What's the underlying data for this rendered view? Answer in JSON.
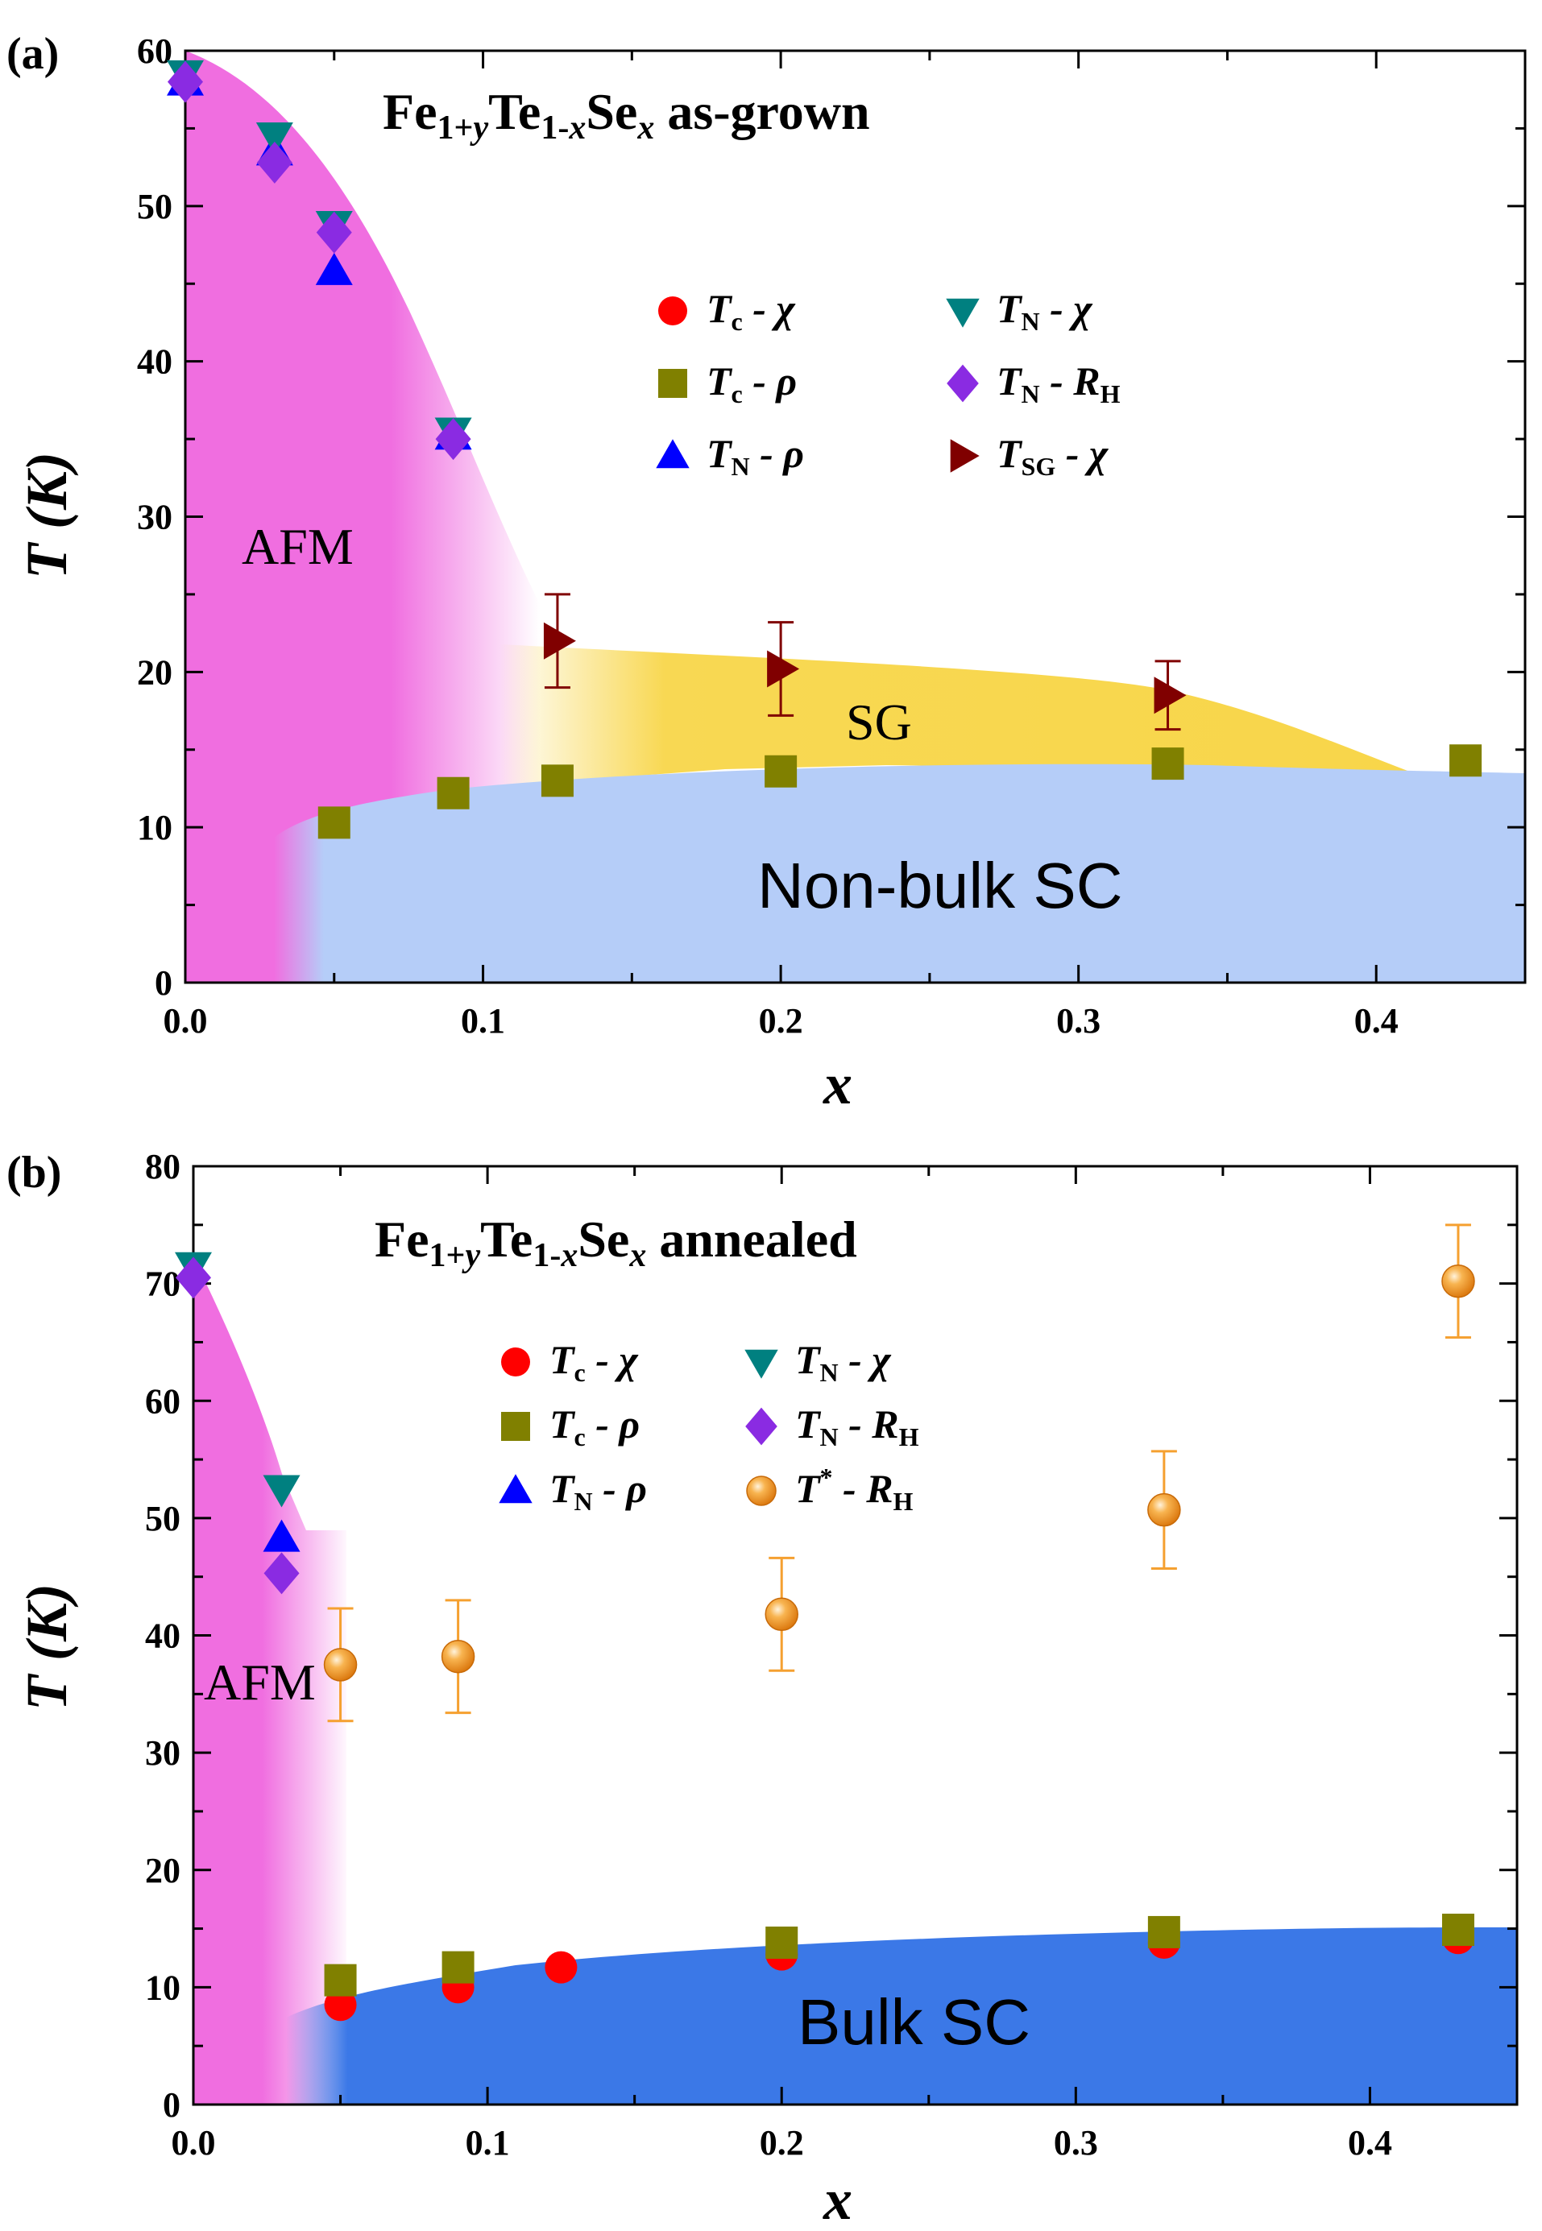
{
  "chart_data": [
    {
      "type": "scatter",
      "panel_label": "(a)",
      "title": "Fe1+yTe1-xSex as-grown",
      "title_parts": {
        "base": "Fe",
        "sub1": "1+",
        "sub1_italic": "y",
        "mid": "Te",
        "sub2": "1-",
        "sub2_italic": "x",
        "end": "Se",
        "sub3": "x",
        "suffix": " as-grown"
      },
      "xlabel": "x",
      "ylabel": "T (K)",
      "xlim": [
        0.0,
        0.45
      ],
      "ylim": [
        0,
        60
      ],
      "x_ticks": [
        "0.0",
        "0.1",
        "0.2",
        "0.3",
        "0.4"
      ],
      "y_ticks": [
        "0",
        "10",
        "20",
        "30",
        "40",
        "50",
        "60"
      ],
      "regions": [
        {
          "label": "AFM",
          "color": "#f06ee0"
        },
        {
          "label": "SG",
          "color": "#f8d64a"
        },
        {
          "label": "Non-bulk SC",
          "color": "#b5cdf8"
        }
      ],
      "legend": [
        {
          "sym": "T",
          "sub": "c",
          "tail": " - χ",
          "marker": "circle",
          "color": "#ff0000"
        },
        {
          "sym": "T",
          "sub": "c",
          "tail": " - ρ",
          "marker": "square",
          "color": "#808000"
        },
        {
          "sym": "T",
          "sub": "N",
          "tail": " - ρ",
          "marker": "triangle-up",
          "color": "#0000ff"
        },
        {
          "sym": "T",
          "sub": "N",
          "tail": " - χ",
          "marker": "triangle-down",
          "color": "#008080"
        },
        {
          "sym": "T",
          "sub": "N",
          "tail": " - R",
          "sub2": "H",
          "marker": "diamond",
          "color": "#8a2be2"
        },
        {
          "sym": "T",
          "sub": "SG",
          "tail": " - χ",
          "marker": "triangle-right",
          "color": "#800000"
        }
      ],
      "series": [
        {
          "name": "Tc - ρ",
          "marker": "square",
          "color": "#808000",
          "x": [
            0.05,
            0.09,
            0.125,
            0.2,
            0.33,
            0.43
          ],
          "y": [
            10.3,
            12.2,
            13.0,
            13.6,
            14.1,
            14.3
          ]
        },
        {
          "name": "TN - ρ",
          "marker": "triangle-up",
          "color": "#0000ff",
          "x": [
            0.0,
            0.03,
            0.05,
            0.09
          ],
          "y": [
            58.0,
            53.5,
            45.8,
            35.2
          ]
        },
        {
          "name": "TN - χ",
          "marker": "triangle-down",
          "color": "#008080",
          "x": [
            0.0,
            0.03,
            0.05,
            0.09
          ],
          "y": [
            58.5,
            54.5,
            48.8,
            35.5
          ]
        },
        {
          "name": "TN - RH",
          "marker": "diamond",
          "color": "#8a2be2",
          "x": [
            0.0,
            0.03,
            0.05,
            0.09
          ],
          "y": [
            58.0,
            52.8,
            48.3,
            35.0
          ]
        },
        {
          "name": "TSG - χ",
          "marker": "triangle-right",
          "color": "#800000",
          "x": [
            0.125,
            0.2,
            0.33
          ],
          "y": [
            22.0,
            20.2,
            18.5
          ],
          "err": [
            3.0,
            3.0,
            2.2
          ]
        }
      ]
    },
    {
      "type": "scatter",
      "panel_label": "(b)",
      "title": "Fe1+yTe1-xSex annealed",
      "title_parts": {
        "base": "Fe",
        "sub1": "1+",
        "sub1_italic": "y",
        "mid": "Te",
        "sub2": "1-",
        "sub2_italic": "x",
        "end": "Se",
        "sub3": "x",
        "suffix": " annealed"
      },
      "xlabel": "x",
      "ylabel": "T (K)",
      "xlim": [
        0.0,
        0.45
      ],
      "ylim": [
        0,
        80
      ],
      "x_ticks": [
        "0.0",
        "0.1",
        "0.2",
        "0.3",
        "0.4"
      ],
      "y_ticks": [
        "0",
        "10",
        "20",
        "30",
        "40",
        "50",
        "60",
        "70",
        "80"
      ],
      "regions": [
        {
          "label": "AFM",
          "color": "#f06ee0"
        },
        {
          "label": "Bulk SC",
          "color": "#3b78e7"
        }
      ],
      "legend": [
        {
          "sym": "T",
          "sub": "c",
          "tail": " - χ",
          "marker": "circle",
          "color": "#ff0000"
        },
        {
          "sym": "T",
          "sub": "c",
          "tail": " - ρ",
          "marker": "square",
          "color": "#808000"
        },
        {
          "sym": "T",
          "sub": "N",
          "tail": " - ρ",
          "marker": "triangle-up",
          "color": "#0000ff"
        },
        {
          "sym": "T",
          "sub": "N",
          "tail": " - χ",
          "marker": "triangle-down",
          "color": "#008080"
        },
        {
          "sym": "T",
          "sub": "N",
          "tail": " - R",
          "sub2": "H",
          "marker": "diamond",
          "color": "#8a2be2"
        },
        {
          "sym": "T",
          "sup": "*",
          "tail": " - R",
          "sub2": "H",
          "marker": "sphere",
          "color": "#f5a030"
        }
      ],
      "series": [
        {
          "name": "Tc - χ",
          "marker": "circle",
          "color": "#ff0000",
          "x": [
            0.05,
            0.09,
            0.125,
            0.2,
            0.33,
            0.43
          ],
          "y": [
            8.5,
            10.0,
            11.7,
            12.8,
            13.8,
            14.2
          ]
        },
        {
          "name": "Tc - ρ",
          "marker": "square",
          "color": "#808000",
          "x": [
            0.05,
            0.09,
            0.2,
            0.33,
            0.43
          ],
          "y": [
            10.6,
            11.7,
            13.8,
            14.7,
            14.9
          ]
        },
        {
          "name": "TN - ρ",
          "marker": "triangle-up",
          "color": "#0000ff",
          "x": [
            0.03
          ],
          "y": [
            48.3
          ]
        },
        {
          "name": "TN - χ",
          "marker": "triangle-down",
          "color": "#008080",
          "x": [
            0.0,
            0.03
          ],
          "y": [
            71.5,
            52.5
          ]
        },
        {
          "name": "TN - RH",
          "marker": "diamond",
          "color": "#8a2be2",
          "x": [
            0.0,
            0.03
          ],
          "y": [
            70.5,
            45.3
          ]
        },
        {
          "name": "T* - RH",
          "marker": "sphere",
          "color": "#f5a030",
          "x": [
            0.05,
            0.09,
            0.2,
            0.33,
            0.43
          ],
          "y": [
            37.5,
            38.2,
            41.8,
            50.7,
            70.2
          ],
          "err": [
            4.8,
            4.8,
            4.8,
            5.0,
            4.8
          ]
        }
      ]
    }
  ]
}
